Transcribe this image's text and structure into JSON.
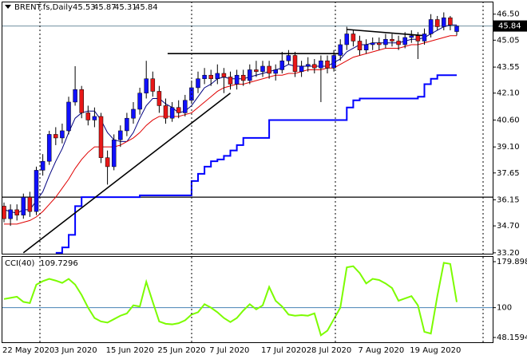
{
  "chart_data": [
    {
      "type": "candlestick",
      "symbol": "BRENT.fs,Daily",
      "categories": [
        "22 May 2020",
        null,
        null,
        null,
        null,
        null,
        null,
        null,
        "3 Jun 2020",
        null,
        null,
        null,
        null,
        null,
        null,
        null,
        "15 Jun 2020",
        null,
        null,
        null,
        null,
        null,
        null,
        null,
        "25 Jun 2020",
        null,
        null,
        null,
        null,
        null,
        null,
        null,
        "7 Jul 2020",
        null,
        null,
        null,
        null,
        null,
        null,
        null,
        "17 Jul 2020",
        null,
        null,
        null,
        null,
        null,
        null,
        "28 Jul 2020",
        null,
        null,
        null,
        null,
        null,
        null,
        null,
        "7 Aug 2020",
        null,
        null,
        null,
        null,
        null,
        null,
        null,
        "19 Aug 2020",
        null,
        null,
        null,
        null,
        null,
        null,
        null
      ],
      "open": [
        35.8,
        35.1,
        35.6,
        35.3,
        36.3,
        35.5,
        37.8,
        38.3,
        39.8,
        39.6,
        40.0,
        41.6,
        42.3,
        41.0,
        40.6,
        40.8,
        38.5,
        38.0,
        39.5,
        40.0,
        40.7,
        41.2,
        42.1,
        42.9,
        42.2,
        41.4,
        40.7,
        41.3,
        41.0,
        41.7,
        42.4,
        42.9,
        43.1,
        42.9,
        43.2,
        43.0,
        42.6,
        43.1,
        42.8,
        43.4,
        43.3,
        43.6,
        43.2,
        43.4,
        43.9,
        44.2,
        43.3,
        43.6,
        43.7,
        43.5,
        43.9,
        43.5,
        44.2,
        44.8,
        45.4,
        45.0,
        44.5,
        44.8,
        44.9,
        44.8,
        45.1,
        45.0,
        44.8,
        45.2,
        45.3,
        45.0,
        45.4,
        46.2,
        45.8,
        46.3,
        45.53
      ],
      "high": [
        36.0,
        35.9,
        35.9,
        36.5,
        36.6,
        38.0,
        38.7,
        40.0,
        40.2,
        40.4,
        41.9,
        43.6,
        42.5,
        41.4,
        41.3,
        41.0,
        38.9,
        39.8,
        40.3,
        41.0,
        41.6,
        42.4,
        43.9,
        43.3,
        42.5,
        41.8,
        41.6,
        41.7,
        42.0,
        42.8,
        43.3,
        43.5,
        43.4,
        43.7,
        43.5,
        43.3,
        43.4,
        43.4,
        43.7,
        43.9,
        43.9,
        43.9,
        43.7,
        44.4,
        44.5,
        44.4,
        43.9,
        44.1,
        44.0,
        44.2,
        44.2,
        44.5,
        45.1,
        45.8,
        45.6,
        45.3,
        45.1,
        45.2,
        45.2,
        45.4,
        45.4,
        45.3,
        45.5,
        45.6,
        45.5,
        45.7,
        46.5,
        46.4,
        46.6,
        46.4,
        45.87
      ],
      "low": [
        34.9,
        34.7,
        35.0,
        35.1,
        35.2,
        35.3,
        37.5,
        38.1,
        39.2,
        39.3,
        39.8,
        41.4,
        40.7,
        40.3,
        40.2,
        38.2,
        37.0,
        37.8,
        39.1,
        39.7,
        40.4,
        40.9,
        41.8,
        41.9,
        41.0,
        40.4,
        40.5,
        40.7,
        40.8,
        41.5,
        42.1,
        42.6,
        42.5,
        42.6,
        42.1,
        42.3,
        42.3,
        42.5,
        42.6,
        43.0,
        43.0,
        42.9,
        42.8,
        43.2,
        43.7,
        43.0,
        43.0,
        43.3,
        43.2,
        41.6,
        43.2,
        43.3,
        43.9,
        44.5,
        44.7,
        44.2,
        44.3,
        44.5,
        44.5,
        44.6,
        44.7,
        44.5,
        44.6,
        44.9,
        44.0,
        44.8,
        45.2,
        45.6,
        45.6,
        45.6,
        45.31
      ],
      "close": [
        35.1,
        35.6,
        35.3,
        36.3,
        35.5,
        37.8,
        38.3,
        39.8,
        39.6,
        40.0,
        41.6,
        42.3,
        41.0,
        40.6,
        40.8,
        38.5,
        38.0,
        39.5,
        40.0,
        40.7,
        41.2,
        42.1,
        42.9,
        42.2,
        41.4,
        40.7,
        41.3,
        41.0,
        41.7,
        42.4,
        42.9,
        43.1,
        42.9,
        43.2,
        43.0,
        42.6,
        43.1,
        42.8,
        43.4,
        43.3,
        43.6,
        43.2,
        43.4,
        43.9,
        44.2,
        43.3,
        43.6,
        43.7,
        43.5,
        43.9,
        43.5,
        44.2,
        44.8,
        45.4,
        45.0,
        44.5,
        44.8,
        44.9,
        44.8,
        45.1,
        45.0,
        44.8,
        45.2,
        45.3,
        45.0,
        45.4,
        46.2,
        45.8,
        46.3,
        45.9,
        45.84
      ],
      "up_color": "#1010ff",
      "down_color": "#e81818",
      "wick_color": "#000000",
      "overlays": [
        {
          "color": "#000080",
          "width": 1,
          "values": [
            35.6,
            35.5,
            35.4,
            35.6,
            35.6,
            36.1,
            36.6,
            37.5,
            38.3,
            39.0,
            39.9,
            40.7,
            41.0,
            41.1,
            41.1,
            40.6,
            39.9,
            39.5,
            39.4,
            39.4,
            39.9,
            40.7,
            41.4,
            41.8,
            41.8,
            41.5,
            41.3,
            41.0,
            41.1,
            41.4,
            41.9,
            42.4,
            42.6,
            42.9,
            43.0,
            42.9,
            42.9,
            42.9,
            43.0,
            43.1,
            43.2,
            43.3,
            43.4,
            43.5,
            43.7,
            43.6,
            43.6,
            43.6,
            43.6,
            43.6,
            43.6,
            43.8,
            44.0,
            44.4,
            44.6,
            44.8,
            44.8,
            44.9,
            44.9,
            44.9,
            44.9,
            44.9,
            45.0,
            45.1,
            45.1,
            45.2,
            45.4,
            45.6,
            45.8,
            45.9,
            45.9
          ]
        },
        {
          "color": "#e00000",
          "width": 1,
          "values": [
            34.8,
            34.8,
            34.8,
            34.9,
            35.0,
            35.2,
            35.5,
            35.9,
            36.3,
            36.8,
            37.3,
            37.9,
            38.4,
            38.8,
            39.1,
            39.1,
            39.1,
            39.1,
            39.2,
            39.4,
            39.6,
            39.9,
            40.3,
            40.6,
            40.8,
            40.8,
            40.8,
            40.8,
            40.9,
            41.0,
            41.3,
            41.6,
            41.9,
            42.2,
            42.4,
            42.5,
            42.6,
            42.6,
            42.7,
            42.8,
            42.9,
            43.0,
            43.1,
            43.1,
            43.2,
            43.2,
            43.3,
            43.4,
            43.4,
            43.4,
            43.5,
            43.5,
            43.7,
            43.9,
            44.1,
            44.2,
            44.3,
            44.4,
            44.5,
            44.6,
            44.6,
            44.6,
            44.7,
            44.8,
            44.8,
            44.9,
            45.0,
            45.1,
            45.2,
            45.3,
            45.3
          ]
        },
        {
          "color": "#0000ff",
          "width": 2,
          "step": true,
          "values": [
            null,
            null,
            null,
            null,
            null,
            null,
            null,
            null,
            33.2,
            33.5,
            34.2,
            35.8,
            36.3,
            36.3,
            36.3,
            36.3,
            36.3,
            36.3,
            36.3,
            36.3,
            36.3,
            36.4,
            36.4,
            36.4,
            36.4,
            36.4,
            36.4,
            36.4,
            36.4,
            37.2,
            37.6,
            38.0,
            38.3,
            38.4,
            38.6,
            38.9,
            39.2,
            39.6,
            39.6,
            39.6,
            39.6,
            40.6,
            40.6,
            40.6,
            40.6,
            40.6,
            40.6,
            40.6,
            40.6,
            40.6,
            40.6,
            40.6,
            40.6,
            41.3,
            41.7,
            41.8,
            41.8,
            41.8,
            41.8,
            41.8,
            41.8,
            41.8,
            41.8,
            41.8,
            41.9,
            42.6,
            42.9,
            43.1,
            43.1,
            43.1,
            43.1
          ]
        }
      ],
      "trendlines": [
        {
          "x": [
            3,
            35
          ],
          "y": [
            33.2,
            42.1
          ]
        },
        {
          "x": [
            25.3,
            52.4
          ],
          "y": [
            44.3,
            44.3
          ]
        },
        {
          "x": [
            53,
            65
          ],
          "y": [
            45.65,
            45.3
          ]
        }
      ],
      "horizontal_lines": [
        36.3
      ],
      "line_color": "#000000",
      "price_line_color": "#7090a0",
      "ylim": [
        33.15,
        47.2
      ],
      "yticks": [
        {
          "value": 46.5,
          "label": "46.50"
        },
        45.05,
        43.55,
        {
          "value": 42.1,
          "label": "42.10"
        },
        {
          "value": 40.6,
          "label": "40.60"
        },
        {
          "value": 39.1,
          "label": "39.10"
        },
        37.65,
        36.15,
        {
          "value": 34.7,
          "label": "34.70"
        },
        {
          "value": 33.2,
          "label": "33.20"
        }
      ]
    },
    {
      "type": "line",
      "title": "CCI(40)",
      "color": "#7cfc00",
      "level": 100,
      "level_color": "#4682b4",
      "values": [
        115,
        117,
        119,
        110,
        108,
        140,
        146,
        150,
        147,
        143,
        150,
        140,
        122,
        100,
        82,
        76,
        74,
        80,
        86,
        90,
        104,
        102,
        145,
        110,
        76,
        72,
        71,
        73,
        78,
        88,
        92,
        106,
        100,
        92,
        82,
        75,
        82,
        95,
        106,
        97,
        104,
        136,
        112,
        102,
        88,
        86,
        87,
        86,
        90,
        52,
        60,
        80,
        100,
        170,
        172,
        160,
        142,
        150,
        148,
        142,
        134,
        112,
        116,
        120,
        104,
        58,
        55,
        120,
        178,
        176,
        109.7296
      ],
      "ylim": [
        38.5,
        189.6
      ],
      "yticks": [
        179.898,
        100,
        48.1594
      ]
    }
  ]
}
